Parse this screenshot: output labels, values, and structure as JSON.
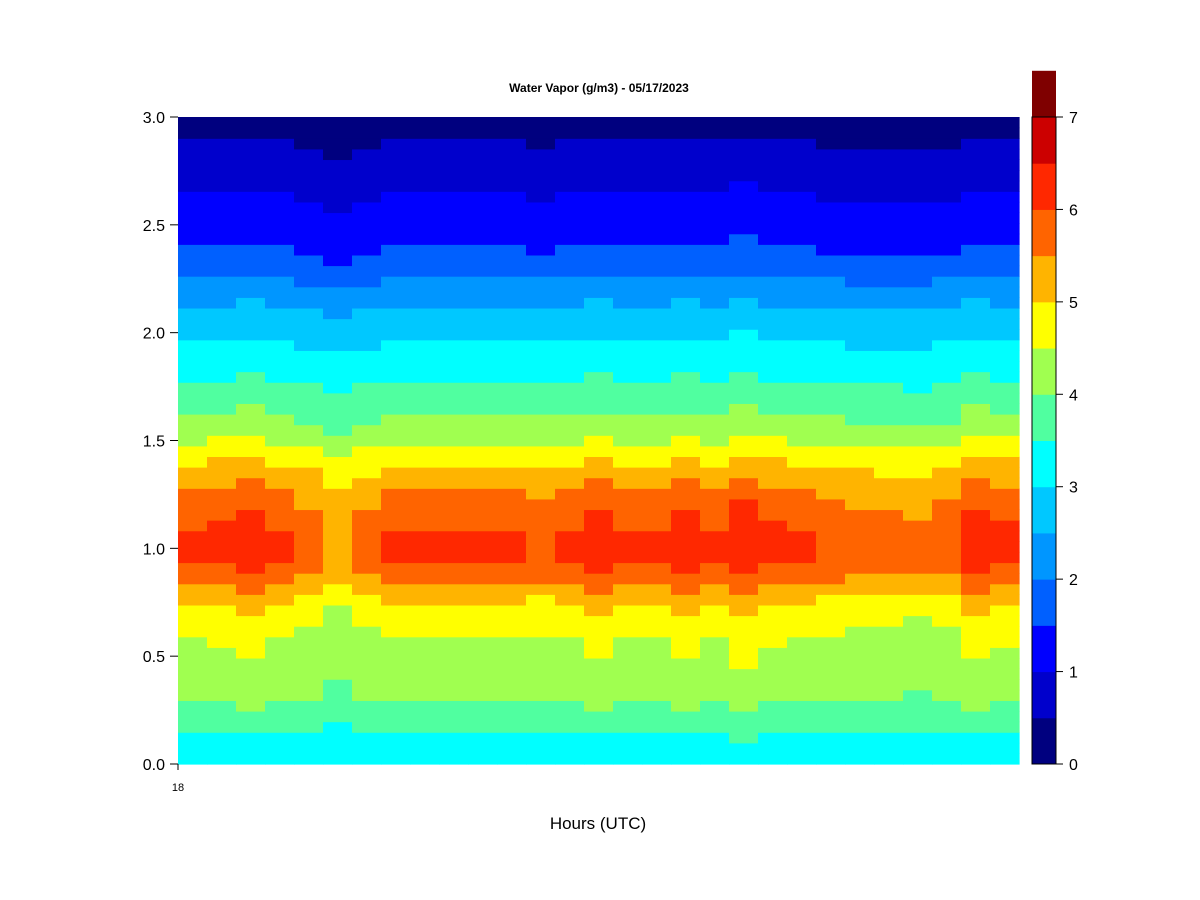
{
  "chart_data": {
    "type": "heatmap",
    "title": "Water Vapor (g/m3) - 05/17/2023",
    "xlabel": "Hours (UTC)",
    "ylabel": "",
    "x_tick_labels": [
      "18"
    ],
    "y_tick_labels": [
      "0.0",
      "0.5",
      "1.0",
      "1.5",
      "2.0",
      "2.5",
      "3.0"
    ],
    "ylim": [
      0,
      3
    ],
    "colorbar": {
      "tick_labels": [
        "0",
        "1",
        "2",
        "3",
        "4",
        "5",
        "6",
        "7"
      ],
      "range": [
        0,
        7
      ],
      "step": 0.5,
      "colors": [
        "#00007f",
        "#0000cc",
        "#0000ff",
        "#0060ff",
        "#0096ff",
        "#00c8ff",
        "#00ffff",
        "#50ffa0",
        "#a0ff50",
        "#ffff00",
        "#ffb400",
        "#ff6400",
        "#ff2800",
        "#cc0000",
        "#7f0000"
      ]
    },
    "x_columns": [
      0,
      1,
      2,
      3,
      4,
      5,
      6,
      7,
      8,
      9,
      10,
      11,
      12,
      13,
      14,
      15,
      16,
      17,
      18,
      19,
      20,
      21,
      22,
      23,
      24,
      25,
      26,
      27,
      28
    ],
    "heights": [
      0.0,
      0.05,
      0.1,
      0.15,
      0.2,
      0.25,
      0.3,
      0.35,
      0.4,
      0.45,
      0.5,
      0.55,
      0.6,
      0.65,
      0.7,
      0.75,
      0.8,
      0.85,
      0.9,
      0.95,
      1.0,
      1.05,
      1.1,
      1.15,
      1.2,
      1.25,
      1.3,
      1.35,
      1.4,
      1.45,
      1.5,
      1.55,
      1.6,
      1.65,
      1.7,
      1.75,
      1.8,
      1.85,
      1.9,
      1.95,
      2.0,
      2.05,
      2.1,
      2.15,
      2.2,
      2.25,
      2.3,
      2.35,
      2.4,
      2.45,
      2.5,
      2.55,
      2.6,
      2.65,
      2.7,
      2.75,
      2.8,
      2.85,
      2.9,
      2.95,
      3.0
    ],
    "profile_values": [
      3.2,
      3.3,
      3.4,
      3.6,
      3.8,
      3.95,
      4.1,
      4.2,
      4.3,
      4.35,
      4.4,
      4.45,
      4.55,
      4.7,
      4.85,
      5.05,
      5.3,
      5.6,
      5.85,
      6.0,
      6.05,
      6.0,
      5.9,
      5.8,
      5.65,
      5.5,
      5.35,
      5.15,
      4.95,
      4.7,
      4.45,
      4.25,
      4.05,
      3.9,
      3.75,
      3.6,
      3.45,
      3.35,
      3.2,
      3.05,
      2.9,
      2.75,
      2.6,
      2.45,
      2.25,
      2.05,
      1.85,
      1.65,
      1.5,
      1.4,
      1.3,
      1.2,
      1.1,
      1.0,
      0.9,
      0.8,
      0.7,
      0.6,
      0.5,
      0.35,
      0.25
    ],
    "column_adjustments": [
      0.05,
      0.1,
      0.25,
      0.0,
      -0.15,
      -0.45,
      -0.2,
      0.0,
      0.0,
      0.0,
      0.0,
      0.0,
      -0.05,
      0.0,
      0.2,
      0.0,
      0.0,
      0.2,
      0.0,
      0.3,
      0.1,
      0.0,
      -0.05,
      -0.15,
      -0.2,
      -0.25,
      -0.1,
      0.25,
      0.1
    ]
  }
}
